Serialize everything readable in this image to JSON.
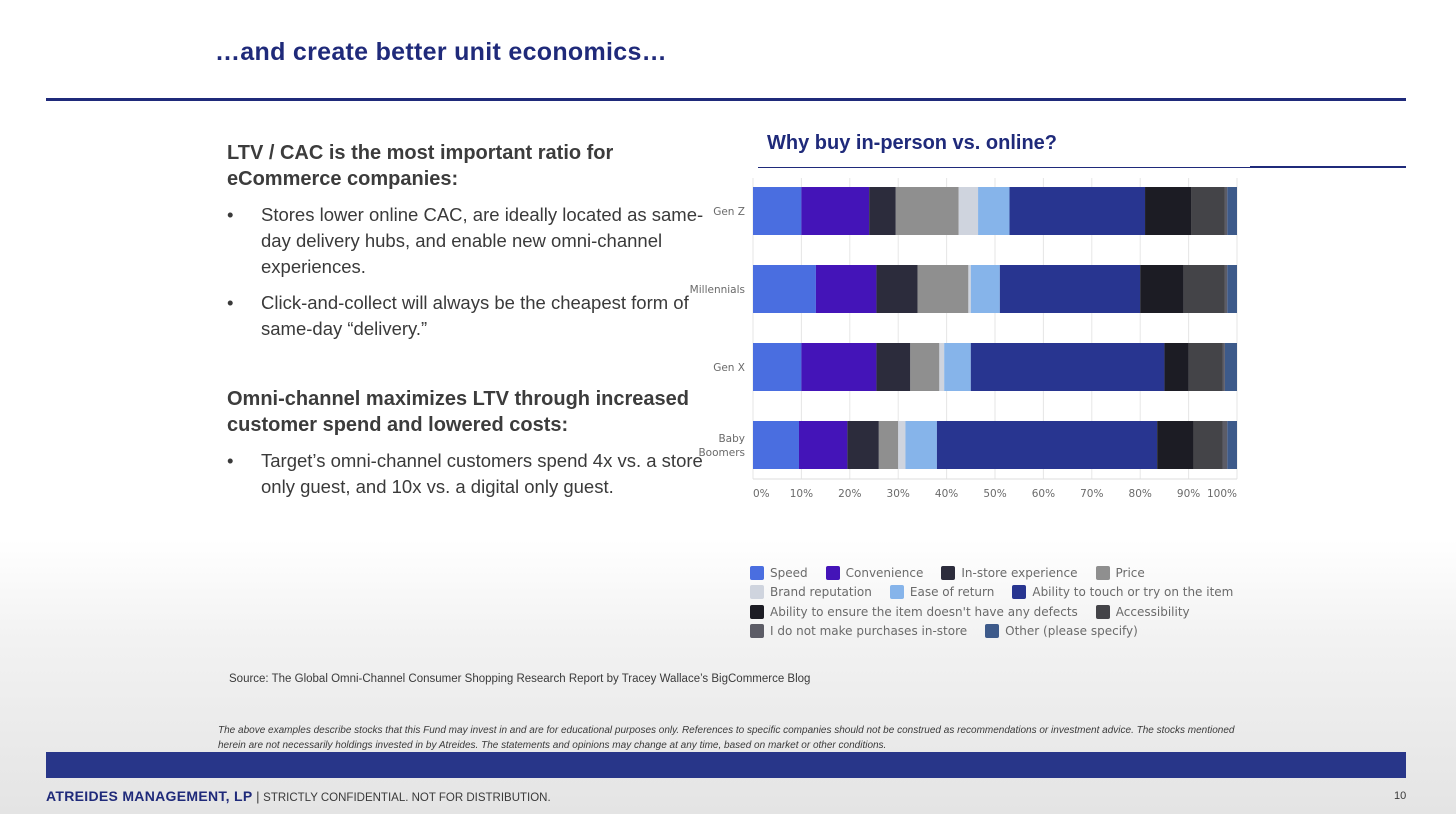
{
  "slide": {
    "title": "…and create better unit economics…"
  },
  "left": {
    "section1_heading": "LTV / CAC is the most important ratio for eCommerce companies:",
    "section1_bullets": [
      "Stores lower online CAC, are ideally located as same-day delivery hubs, and enable new omni-channel experiences.",
      "Click-and-collect will always be the cheapest form of same-day “delivery.”"
    ],
    "section2_heading": "Omni-channel maximizes LTV through increased customer spend and lowered costs:",
    "section2_bullets": [
      "Target’s omni-channel customers spend 4x vs. a store only guest, and 10x vs. a digital only guest."
    ],
    "bullet_glyph": "•"
  },
  "chart_data": {
    "type": "bar",
    "orientation": "horizontal",
    "stacked": true,
    "title": "Why buy in-person vs. online?",
    "categories": [
      "Gen Z",
      "Millennials",
      "Gen X",
      "Baby Boomers"
    ],
    "category_lines": [
      [
        "Gen Z"
      ],
      [
        "Millennials"
      ],
      [
        "Gen X"
      ],
      [
        "Baby",
        "Boomers"
      ]
    ],
    "xlim": [
      0,
      100
    ],
    "ticks": [
      "0%",
      "10%",
      "20%",
      "30%",
      "40%",
      "50%",
      "60%",
      "70%",
      "80%",
      "90%",
      "100%"
    ],
    "grid": true,
    "legend_position": "bottom",
    "series": [
      {
        "name": "Speed",
        "color": "#4a6ee0",
        "values": [
          10,
          13,
          10,
          9.5
        ]
      },
      {
        "name": "Convenience",
        "color": "#4414b8",
        "values": [
          14,
          12.5,
          15.5,
          10
        ]
      },
      {
        "name": "In-store experience",
        "color": "#2c2c3c",
        "values": [
          5.5,
          8.5,
          7,
          6.5
        ]
      },
      {
        "name": "Price",
        "color": "#8f8f8f",
        "values": [
          13,
          10.5,
          6,
          4
        ]
      },
      {
        "name": "Brand reputation",
        "color": "#cfd4de",
        "values": [
          4,
          0.5,
          1,
          1.5
        ]
      },
      {
        "name": "Ease of return",
        "color": "#86b4ea",
        "values": [
          6.5,
          6,
          5.5,
          6.5
        ]
      },
      {
        "name": "Ability to touch or try on the item",
        "color": "#283590",
        "values": [
          28,
          29,
          40,
          45.5
        ]
      },
      {
        "name": "Ability to ensure the item doesn't have any defects",
        "color": "#1c1c24",
        "values": [
          9.5,
          9,
          5,
          7.5
        ]
      },
      {
        "name": "Accessibility",
        "color": "#444448",
        "values": [
          7,
          8.5,
          7,
          6
        ]
      },
      {
        "name": "I do not make purchases in-store",
        "color": "#5c5c66",
        "values": [
          0.5,
          0.5,
          0.5,
          1
        ]
      },
      {
        "name": "Other (please specify)",
        "color": "#3d5a8a",
        "values": [
          2,
          2,
          2.5,
          2
        ]
      }
    ],
    "legend_rows": [
      [
        0,
        1,
        2,
        3
      ],
      [
        4,
        5,
        6
      ],
      [
        7,
        8
      ],
      [
        9,
        10
      ]
    ]
  },
  "source": "Source: The Global Omni-Channel Consumer Shopping Research Report by Tracey Wallace’s BigCommerce Blog",
  "disclaimer": "The above examples describe stocks that this Fund may invest in and are for educational purposes only.  References to specific companies should not be construed as recommendations or investment advice.  The stocks mentioned herein are not necessarily holdings invested in by Atreides.  The statements and opinions may change at any time, based on market or other conditions.",
  "footer": {
    "firm": "ATREIDES MANAGEMENT, LP",
    "separator": " | ",
    "confidential": "STRICTLY CONFIDENTIAL. NOT FOR DISTRIBUTION.",
    "page_number": "10"
  },
  "colors": {
    "brand_navy": "#1f2a7a",
    "footer_band": "#283689"
  }
}
